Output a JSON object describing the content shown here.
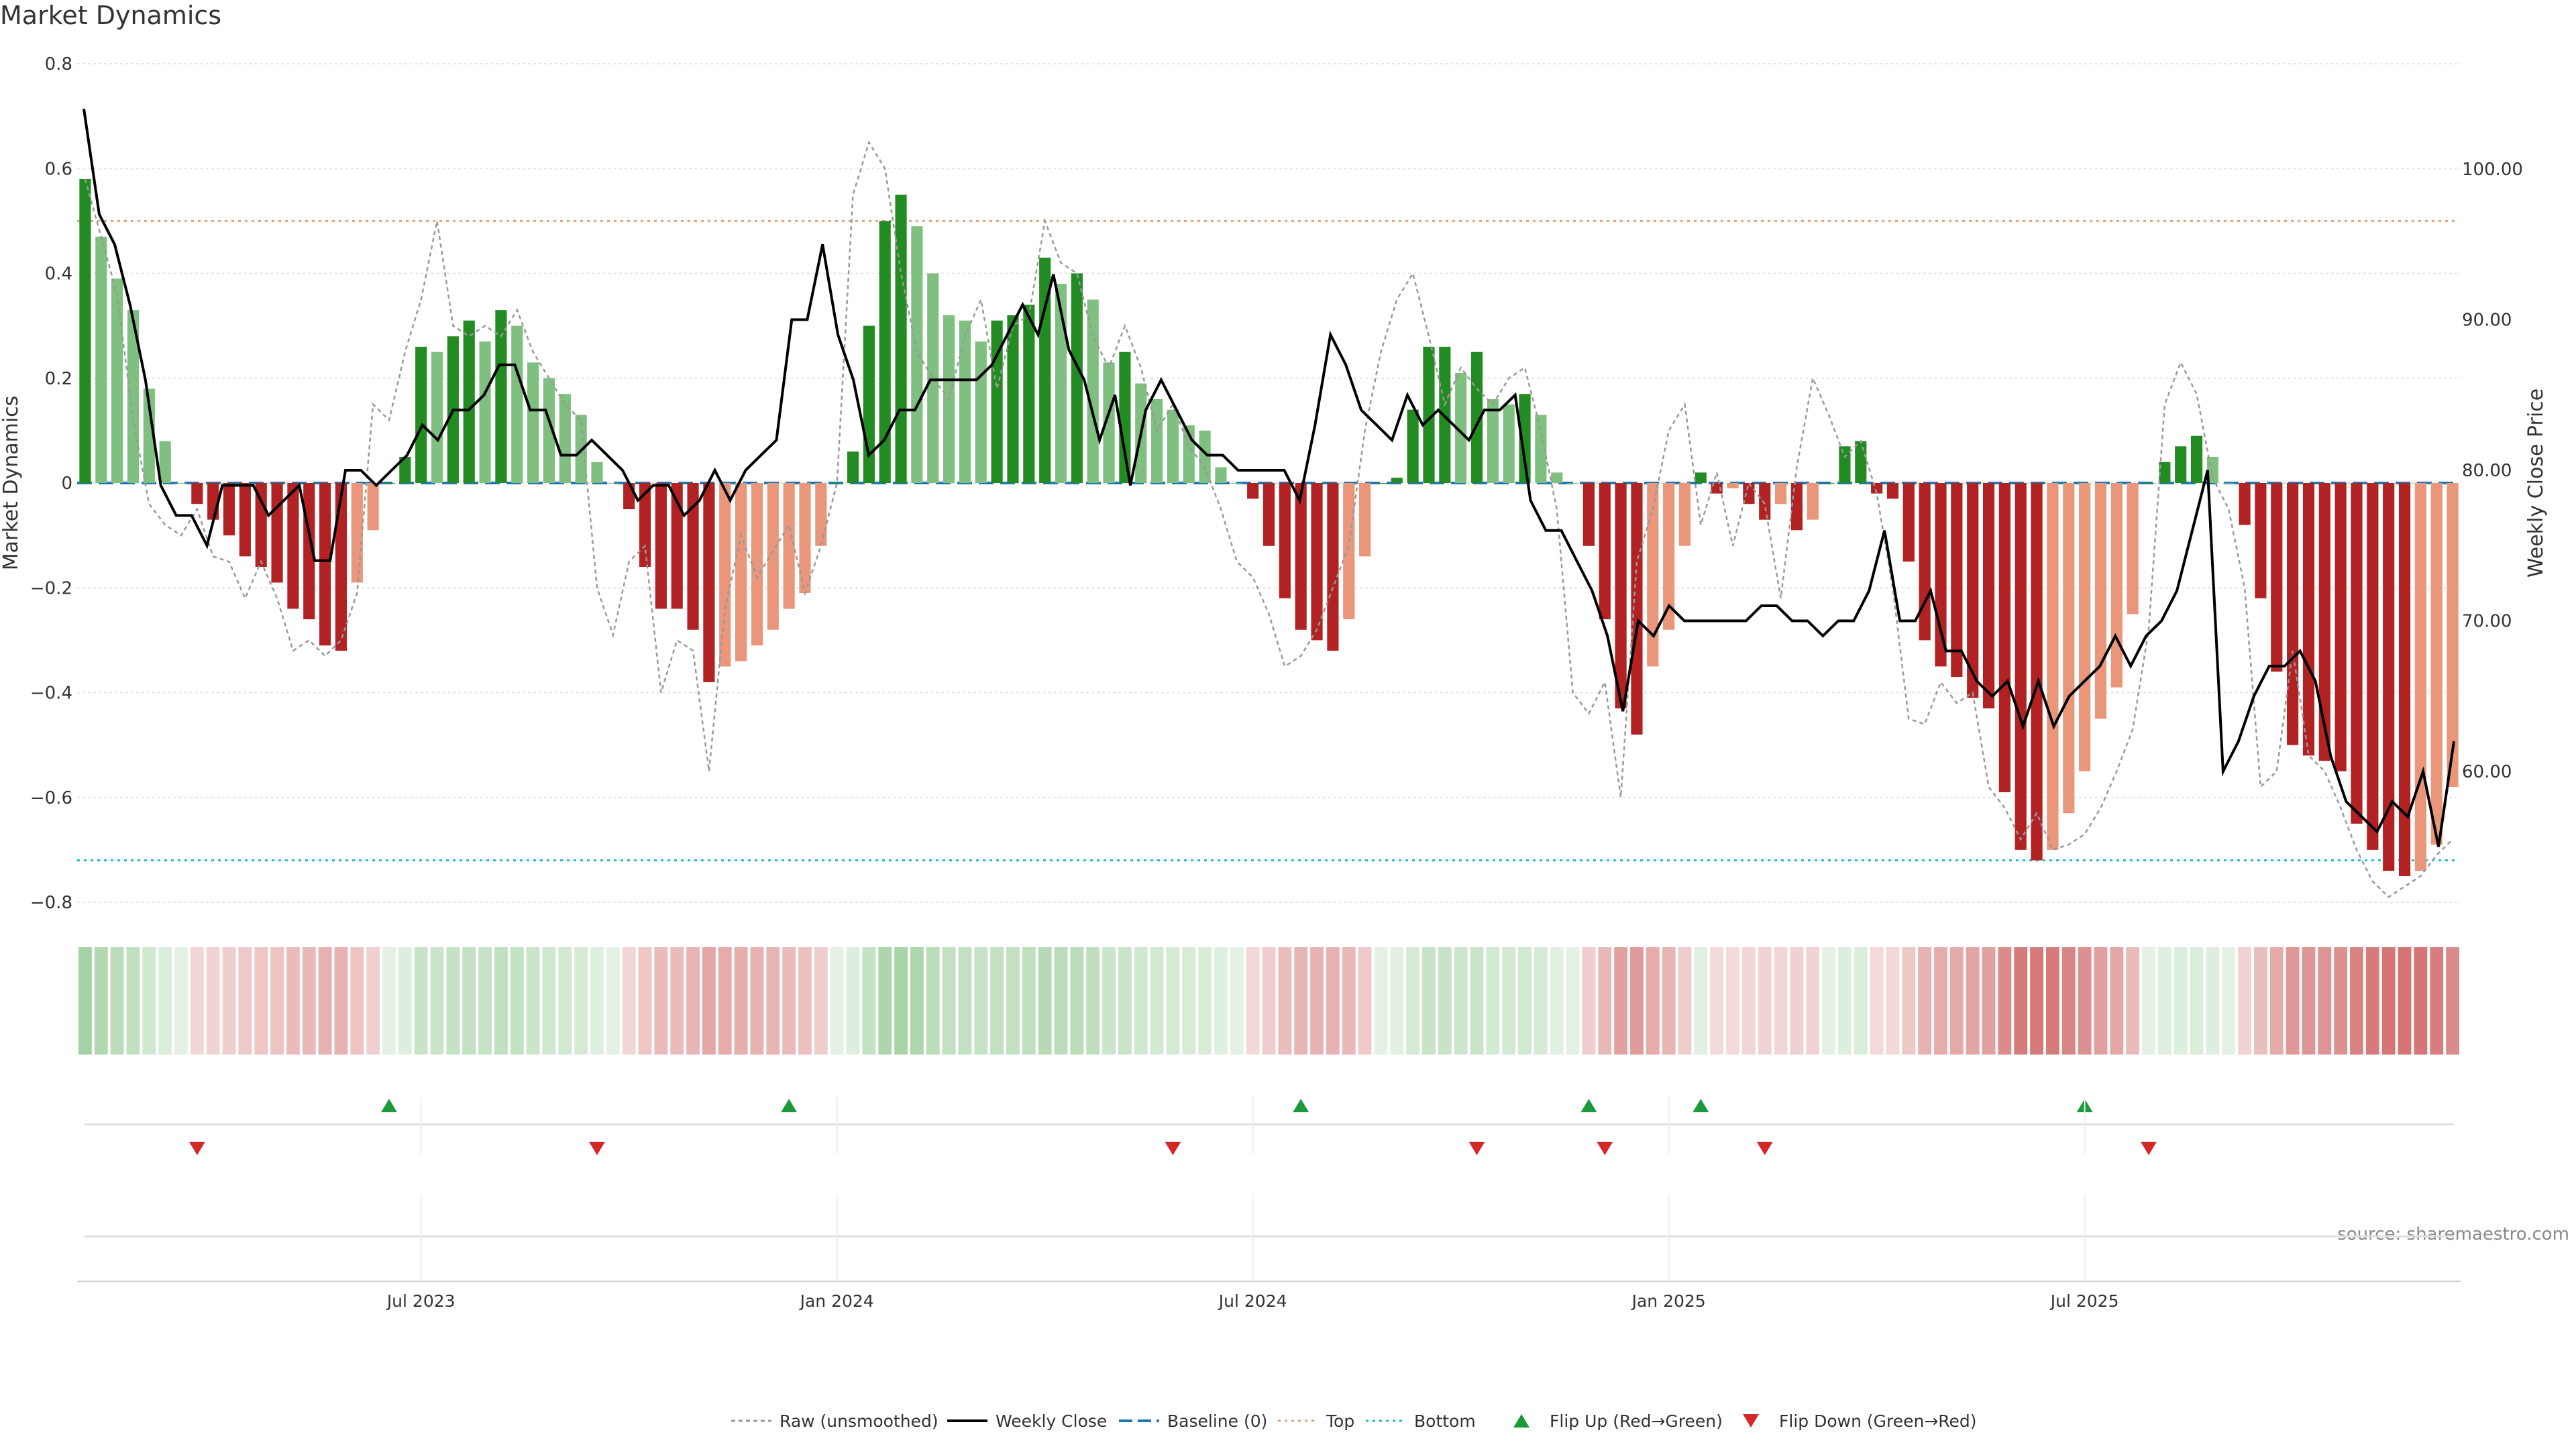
{
  "title": "Market Dynamics",
  "source": "source: sharemaestro.com",
  "colors": {
    "bull_strong": "#228B22",
    "bull_weak": "#7FBF7F",
    "bear_strong": "#B22222",
    "bear_weak": "#E9967A",
    "close_line": "#000000",
    "raw_line": "#999999",
    "baseline": "#1f77b4",
    "top": "#e8a07a",
    "bottom": "#17becf",
    "flip_up": "#1a9a3a",
    "flip_down": "#d62728"
  },
  "chart_data": {
    "type": "bar",
    "x_axis": {
      "ticks": [
        "Jul 2023",
        "Jan 2024",
        "Jul 2024",
        "Jan 2025",
        "Jul 2025"
      ],
      "tick_index": [
        21,
        47,
        73,
        99,
        125
      ]
    },
    "left_axis": {
      "label": "Market Dynamics",
      "range": [
        -0.8,
        0.8
      ],
      "ticks": [
        "0.8",
        "0.6",
        "0.4",
        "0.2",
        "0",
        "−0.2",
        "−0.4",
        "−0.6",
        "−0.8"
      ],
      "tick_values": [
        0.8,
        0.6,
        0.4,
        0.2,
        0,
        -0.2,
        -0.4,
        -0.6,
        -0.8
      ]
    },
    "right_axis": {
      "label": "Weekly Close Price",
      "ticks": [
        "100.00",
        "90.00",
        "80.00",
        "70.00",
        "60.00"
      ],
      "tick_values": [
        100,
        90,
        80,
        70,
        60
      ]
    },
    "reference_lines": {
      "baseline": 0,
      "top": 0.5,
      "bottom": -0.72
    },
    "dynamics": [
      0.58,
      0.47,
      0.39,
      0.33,
      0.18,
      0.08,
      0,
      -0.04,
      -0.07,
      -0.1,
      -0.14,
      -0.16,
      -0.19,
      -0.24,
      -0.26,
      -0.31,
      -0.32,
      -0.19,
      -0.09,
      0,
      0.05,
      0.26,
      0.25,
      0.28,
      0.31,
      0.27,
      0.33,
      0.3,
      0.23,
      0.2,
      0.17,
      0.13,
      0.04,
      0,
      -0.05,
      -0.16,
      -0.24,
      -0.24,
      -0.28,
      -0.38,
      -0.35,
      -0.34,
      -0.31,
      -0.28,
      -0.24,
      -0.21,
      -0.12,
      0,
      0.06,
      0.3,
      0.5,
      0.55,
      0.49,
      0.4,
      0.32,
      0.31,
      0.27,
      0.31,
      0.32,
      0.34,
      0.43,
      0.38,
      0.4,
      0.35,
      0.23,
      0.25,
      0.19,
      0.16,
      0.14,
      0.11,
      0.1,
      0.03,
      0,
      -0.03,
      -0.12,
      -0.22,
      -0.28,
      -0.3,
      -0.32,
      -0.26,
      -0.14,
      0,
      0.01,
      0.14,
      0.26,
      0.26,
      0.21,
      0.25,
      0.16,
      0.15,
      0.17,
      0.13,
      0.02,
      0,
      -0.12,
      -0.26,
      -0.43,
      -0.48,
      -0.35,
      -0.28,
      -0.12,
      0.02,
      -0.02,
      -0.01,
      -0.04,
      -0.07,
      -0.04,
      -0.09,
      -0.07,
      0,
      0.07,
      0.08,
      -0.02,
      -0.03,
      -0.15,
      -0.3,
      -0.35,
      -0.37,
      -0.41,
      -0.43,
      -0.59,
      -0.7,
      -0.72,
      -0.7,
      -0.63,
      -0.55,
      -0.45,
      -0.39,
      -0.25,
      0,
      0.04,
      0.07,
      0.09,
      0.05,
      0,
      -0.08,
      -0.22,
      -0.36,
      -0.5,
      -0.52,
      -0.53,
      -0.55,
      -0.65,
      -0.7,
      -0.74,
      -0.75,
      -0.74,
      -0.69,
      -0.58
    ],
    "weekly_close": [
      104,
      97,
      95,
      91,
      86,
      79,
      77,
      77,
      75,
      79,
      79,
      79,
      77,
      78,
      79,
      74,
      74,
      80,
      80,
      79,
      80,
      81,
      83,
      82,
      84,
      84,
      85,
      87,
      87,
      84,
      84,
      81,
      81,
      82,
      81,
      80,
      78,
      79,
      79,
      77,
      78,
      80,
      78,
      80,
      81,
      82,
      90,
      90,
      95,
      89,
      86,
      81,
      82,
      84,
      84,
      86,
      86,
      86,
      86,
      87,
      89,
      91,
      89,
      93,
      88,
      86,
      82,
      85,
      79,
      84,
      86,
      84,
      82,
      81,
      81,
      80,
      80,
      80,
      80,
      78,
      83,
      89,
      87,
      84,
      83,
      82,
      85,
      83,
      84,
      83,
      82,
      84,
      84,
      85,
      78,
      76,
      76,
      74,
      72,
      69,
      64,
      70,
      69,
      71,
      70,
      70,
      70,
      70,
      70,
      71,
      71,
      70,
      70,
      69,
      70,
      70,
      72,
      76,
      70,
      70,
      72,
      68,
      68,
      66,
      65,
      66,
      63,
      66,
      63,
      65,
      66,
      67,
      69,
      67,
      69,
      70,
      72,
      76,
      80,
      60,
      62,
      65,
      67,
      67,
      68,
      66,
      61,
      58,
      57,
      56,
      58,
      57,
      60,
      55,
      62
    ],
    "raw": [
      0.58,
      0.47,
      0.36,
      0.12,
      -0.04,
      -0.08,
      -0.1,
      -0.05,
      -0.14,
      -0.15,
      -0.22,
      -0.15,
      -0.22,
      -0.32,
      -0.3,
      -0.33,
      -0.3,
      -0.21,
      0.15,
      0.12,
      0.25,
      0.35,
      0.5,
      0.3,
      0.28,
      0.3,
      0.28,
      0.33,
      0.25,
      0.2,
      0.15,
      0.12,
      -0.2,
      -0.29,
      -0.15,
      -0.12,
      -0.4,
      -0.3,
      -0.32,
      -0.55,
      -0.24,
      -0.1,
      -0.18,
      -0.13,
      -0.08,
      -0.21,
      -0.12,
      0.0,
      0.55,
      0.65,
      0.6,
      0.4,
      0.25,
      0.2,
      0.16,
      0.28,
      0.35,
      0.18,
      0.3,
      0.32,
      0.5,
      0.42,
      0.4,
      0.28,
      0.22,
      0.3,
      0.22,
      0.1,
      0.15,
      0.07,
      0.03,
      -0.05,
      -0.15,
      -0.18,
      -0.25,
      -0.35,
      -0.33,
      -0.28,
      -0.2,
      -0.12,
      0.1,
      0.25,
      0.35,
      0.4,
      0.28,
      0.15,
      0.22,
      0.18,
      0.15,
      0.2,
      0.22,
      0.1,
      -0.05,
      -0.4,
      -0.44,
      -0.38,
      -0.6,
      -0.15,
      -0.05,
      0.1,
      0.15,
      -0.08,
      0.02,
      -0.12,
      0.0,
      -0.04,
      -0.22,
      0.03,
      0.2,
      0.13,
      0.05,
      0.08,
      -0.02,
      -0.2,
      -0.45,
      -0.46,
      -0.38,
      -0.42,
      -0.4,
      -0.58,
      -0.62,
      -0.68,
      -0.63,
      -0.7,
      -0.69,
      -0.67,
      -0.62,
      -0.55,
      -0.47,
      -0.28,
      0.15,
      0.23,
      0.17,
      0.01,
      -0.05,
      -0.2,
      -0.58,
      -0.55,
      -0.32,
      -0.52,
      -0.55,
      -0.62,
      -0.7,
      -0.76,
      -0.79,
      -0.77,
      -0.75,
      -0.71,
      -0.68
    ],
    "flip_up_index": [
      19,
      44,
      76,
      94,
      101,
      125
    ],
    "flip_down_index": [
      7,
      32,
      68,
      87,
      95,
      105,
      129
    ],
    "legend": [
      "Raw (unsmoothed)",
      "Weekly Close",
      "Baseline (0)",
      "Top",
      "Bottom",
      "Flip Up (Red→Green)",
      "Flip Down (Green→Red)"
    ]
  }
}
